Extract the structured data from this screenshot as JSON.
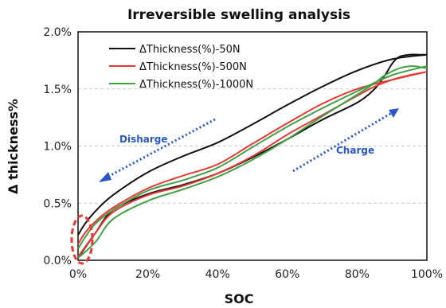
{
  "chart_data": {
    "type": "line",
    "title": "Irreversible swelling analysis",
    "xlabel": "SOC",
    "ylabel": "Δ thickness%",
    "xlim": [
      0,
      100
    ],
    "ylim": [
      0,
      2.0
    ],
    "x_ticks": [
      "0%",
      "20%",
      "40%",
      "60%",
      "80%",
      "100%"
    ],
    "y_ticks": [
      "0.0%",
      "0.5%",
      "1.0%",
      "1.5%",
      "2.0%"
    ],
    "grid": "horizontal dashed",
    "legend_position": "top-left",
    "series": [
      {
        "name": "ΔThickness(%)-50N",
        "color": "#111111",
        "charge": {
          "x": [
            0,
            5,
            10,
            20,
            30,
            40,
            50,
            60,
            70,
            80,
            85,
            88,
            90,
            92,
            95,
            98,
            100
          ],
          "y": [
            0.02,
            0.24,
            0.44,
            0.58,
            0.66,
            0.76,
            0.9,
            1.06,
            1.23,
            1.38,
            1.5,
            1.62,
            1.72,
            1.78,
            1.8,
            1.8,
            1.8
          ]
        },
        "discharge": {
          "x": [
            100,
            90,
            80,
            70,
            60,
            50,
            40,
            30,
            20,
            10,
            5,
            2,
            0
          ],
          "y": [
            1.8,
            1.76,
            1.66,
            1.52,
            1.36,
            1.19,
            1.03,
            0.91,
            0.77,
            0.57,
            0.43,
            0.32,
            0.22
          ]
        }
      },
      {
        "name": "ΔThickness(%)-500N",
        "color": "#e53935",
        "charge": {
          "x": [
            0,
            5,
            10,
            20,
            30,
            40,
            50,
            60,
            70,
            80,
            85,
            90,
            95,
            100
          ],
          "y": [
            0.03,
            0.24,
            0.42,
            0.57,
            0.65,
            0.76,
            0.91,
            1.1,
            1.27,
            1.44,
            1.52,
            1.58,
            1.62,
            1.65
          ]
        },
        "discharge": {
          "x": [
            100,
            90,
            80,
            70,
            60,
            50,
            40,
            30,
            20,
            10,
            5,
            2,
            0
          ],
          "y": [
            1.65,
            1.58,
            1.5,
            1.37,
            1.2,
            1.02,
            0.84,
            0.74,
            0.63,
            0.46,
            0.34,
            0.24,
            0.14
          ]
        }
      },
      {
        "name": "ΔThickness(%)-1000N",
        "color": "#43a047",
        "charge": {
          "x": [
            0,
            5,
            10,
            20,
            30,
            40,
            50,
            60,
            70,
            80,
            85,
            88,
            92,
            96,
            100
          ],
          "y": [
            0.02,
            0.16,
            0.36,
            0.52,
            0.62,
            0.73,
            0.88,
            1.06,
            1.26,
            1.45,
            1.55,
            1.62,
            1.68,
            1.7,
            1.68
          ]
        },
        "discharge": {
          "x": [
            100,
            90,
            80,
            70,
            60,
            50,
            40,
            30,
            20,
            10,
            5,
            2,
            0
          ],
          "y": [
            1.7,
            1.62,
            1.48,
            1.33,
            1.17,
            0.99,
            0.81,
            0.7,
            0.61,
            0.44,
            0.32,
            0.2,
            0.1
          ]
        }
      }
    ],
    "annotations": [
      {
        "text": "Disharge",
        "color": "#2a56c6"
      },
      {
        "text": "Charge",
        "color": "#2a56c6"
      }
    ]
  }
}
